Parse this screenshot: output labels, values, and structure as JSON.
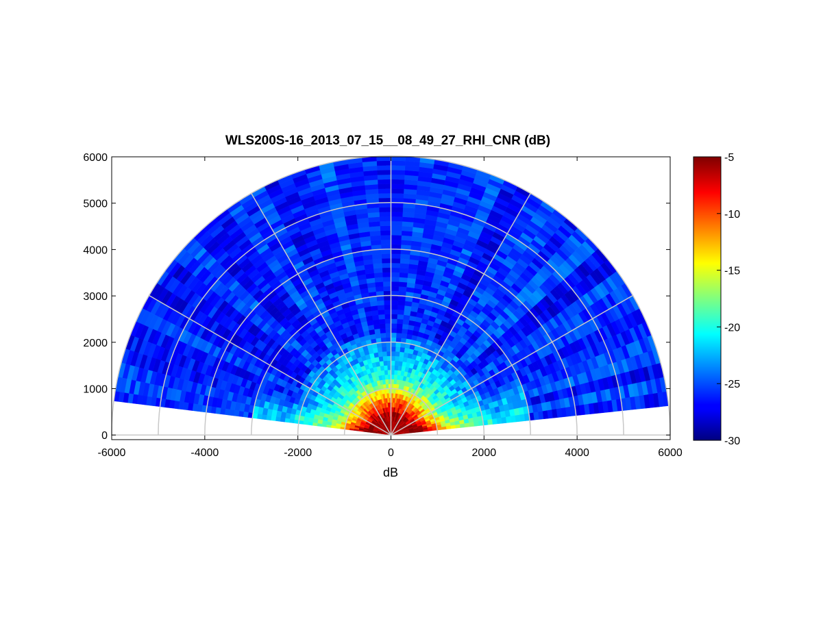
{
  "chart_data": {
    "type": "heatmap",
    "title": "WLS200S-16_2013_07_15__08_49_27_RHI_CNR (dB)",
    "xlabel": "dB",
    "ylabel": "",
    "xlim": [
      -6000,
      6000
    ],
    "ylim": [
      -100,
      6000
    ],
    "x_ticks": [
      "-6000",
      "-4000",
      "-2000",
      "0",
      "2000",
      "4000",
      "6000"
    ],
    "y_ticks": [
      "0",
      "1000",
      "2000",
      "3000",
      "4000",
      "5000",
      "6000"
    ],
    "polar_grid": {
      "rings_m": [
        1000,
        2000,
        3000,
        4000,
        5000,
        6000
      ],
      "spokes_deg": [
        0,
        30,
        60,
        90,
        120,
        150,
        180
      ]
    },
    "scan": {
      "max_range_m": 6000,
      "elevation_start_deg": 6,
      "elevation_end_deg": 173,
      "beam_step_deg": 3,
      "gate_step_m": 100
    },
    "colorbar": {
      "colormap": "jet",
      "min": -30,
      "max": -5,
      "ticks": [
        "-5",
        "-10",
        "-15",
        "-20",
        "-25",
        "-30"
      ]
    },
    "cnr_profile": {
      "near_field_db": -6,
      "background_db": -26
    }
  }
}
